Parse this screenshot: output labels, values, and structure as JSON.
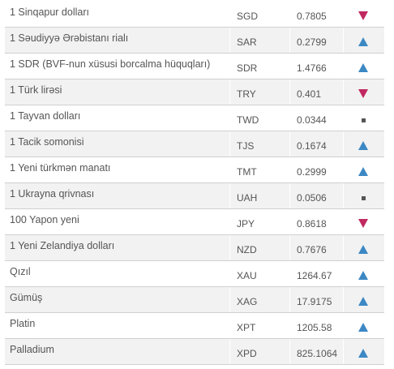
{
  "rates": [
    {
      "name": "1 Sinqapur dolları",
      "code": "SGD",
      "value": "0.7805",
      "trend": "down",
      "trend_icon": "down-triangle-icon"
    },
    {
      "name": "1 Səudiyyə Ərəbistanı rialı",
      "code": "SAR",
      "value": "0.2799",
      "trend": "up",
      "trend_icon": "up-triangle-icon"
    },
    {
      "name": "1 SDR (BVF-nun xüsusi borcalma hüquqları)",
      "code": "SDR",
      "value": "1.4766",
      "trend": "up",
      "trend_icon": "up-triangle-icon"
    },
    {
      "name": "1 Türk lirəsi",
      "code": "TRY",
      "value": "0.401",
      "trend": "down",
      "trend_icon": "down-triangle-icon"
    },
    {
      "name": "1 Tayvan dolları",
      "code": "TWD",
      "value": "0.0344",
      "trend": "same",
      "trend_icon": "square-icon"
    },
    {
      "name": "1 Tacik somonisi",
      "code": "TJS",
      "value": "0.1674",
      "trend": "up",
      "trend_icon": "up-triangle-icon"
    },
    {
      "name": "1 Yeni türkmən manatı",
      "code": "TMT",
      "value": "0.2999",
      "trend": "up",
      "trend_icon": "up-triangle-icon"
    },
    {
      "name": "1 Ukrayna qrivnası",
      "code": "UAH",
      "value": "0.0506",
      "trend": "same",
      "trend_icon": "square-icon"
    },
    {
      "name": "100 Yapon yeni",
      "code": "JPY",
      "value": "0.8618",
      "trend": "down",
      "trend_icon": "down-triangle-icon"
    },
    {
      "name": "1 Yeni Zelandiya dolları",
      "code": "NZD",
      "value": "0.7676",
      "trend": "up",
      "trend_icon": "up-triangle-icon"
    },
    {
      "name": "Qızıl",
      "code": "XAU",
      "value": "1264.67",
      "trend": "up",
      "trend_icon": "up-triangle-icon"
    },
    {
      "name": "Gümüş",
      "code": "XAG",
      "value": "17.9175",
      "trend": "up",
      "trend_icon": "up-triangle-icon"
    },
    {
      "name": "Platin",
      "code": "XPT",
      "value": "1205.58",
      "trend": "up",
      "trend_icon": "up-triangle-icon"
    },
    {
      "name": "Palladium",
      "code": "XPD",
      "value": "825.1064",
      "trend": "up",
      "trend_icon": "up-triangle-icon"
    }
  ],
  "colors": {
    "trend_down": "#c02860",
    "trend_up": "#3c88c4",
    "trend_same": "#555555",
    "alt_row_bg": "#f2f2f2",
    "text": "#555555"
  }
}
